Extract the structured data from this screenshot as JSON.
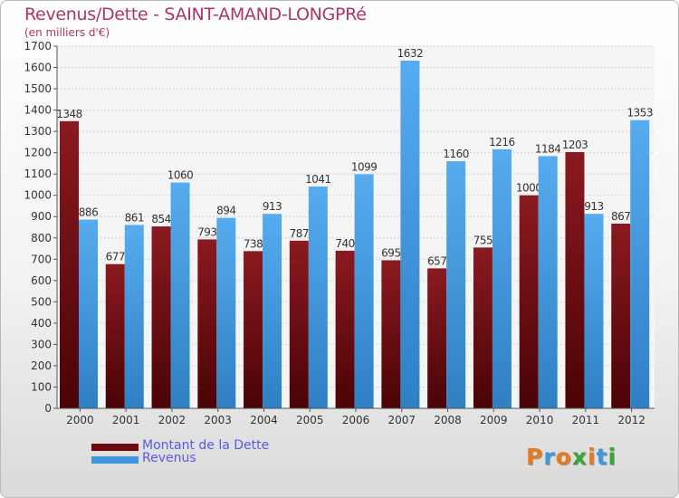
{
  "header": {
    "title": "Revenus/Dette - SAINT-AMAND-LONGPRé",
    "subtitle": "(en milliers d'€)"
  },
  "colors": {
    "dette": "#6b0a0e",
    "revenus": "#3e96dd",
    "title": "#b0336a",
    "legend_text": "#5a5adf"
  },
  "legend": {
    "items": [
      {
        "label": "Montant de la Dette",
        "color": "#6b0a0e"
      },
      {
        "label": "Revenus",
        "color": "#3e96dd"
      }
    ]
  },
  "logo": {
    "text": "Proxiti",
    "letters": [
      "P",
      "r",
      "o",
      "x",
      "i",
      "t",
      "i"
    ],
    "letter_colors": [
      "#e87a1e",
      "#3e96dd",
      "#e87a1e",
      "#3aa53a",
      "#e87a1e",
      "#3e96dd",
      "#3aa53a"
    ]
  },
  "chart_data": {
    "type": "bar",
    "title": "Revenus/Dette - SAINT-AMAND-LONGPRé",
    "subtitle": "(en milliers d'€)",
    "categories": [
      "2000",
      "2001",
      "2002",
      "2003",
      "2004",
      "2005",
      "2006",
      "2007",
      "2008",
      "2009",
      "2010",
      "2011",
      "2012"
    ],
    "series": [
      {
        "name": "Montant de la Dette",
        "values": [
          1348,
          677,
          854,
          793,
          738,
          787,
          740,
          695,
          657,
          755,
          1000,
          1203,
          867
        ]
      },
      {
        "name": "Revenus",
        "values": [
          886,
          861,
          1060,
          894,
          913,
          1041,
          1099,
          1632,
          1160,
          1216,
          1184,
          913,
          1353
        ]
      }
    ],
    "ylim": [
      0,
      1700
    ],
    "ytick_step": 100,
    "grid": true,
    "legend_position": "bottom-left"
  }
}
